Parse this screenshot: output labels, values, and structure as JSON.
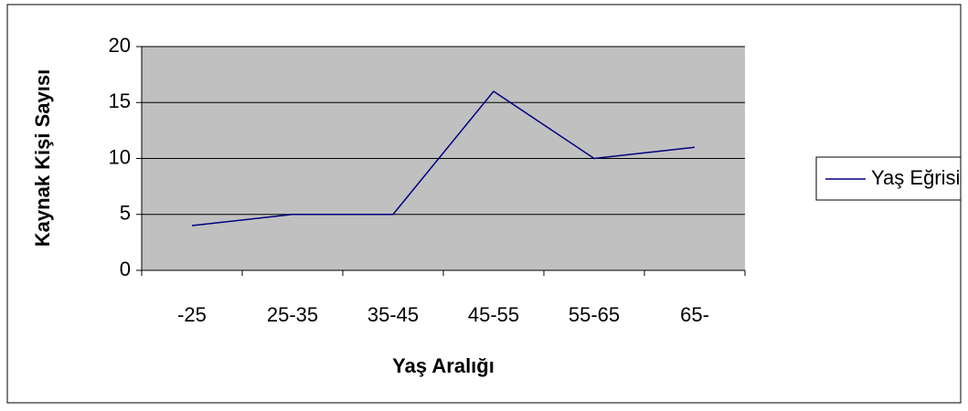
{
  "chart_data": {
    "type": "line",
    "x_label": "Yaş Aralığı",
    "y_label": "Kaynak Kişi Sayısı",
    "categories": [
      "-25",
      "25-35",
      "35-45",
      "45-55",
      "55-65",
      "65-"
    ],
    "series": [
      {
        "name": "Yaş Eğrisi",
        "color": "#000080",
        "values": [
          4,
          5,
          5,
          16,
          10,
          11
        ]
      }
    ],
    "ylim": [
      0,
      20
    ],
    "yticks": [
      0,
      5,
      10,
      15,
      20
    ],
    "grid": true,
    "legend": "right"
  }
}
